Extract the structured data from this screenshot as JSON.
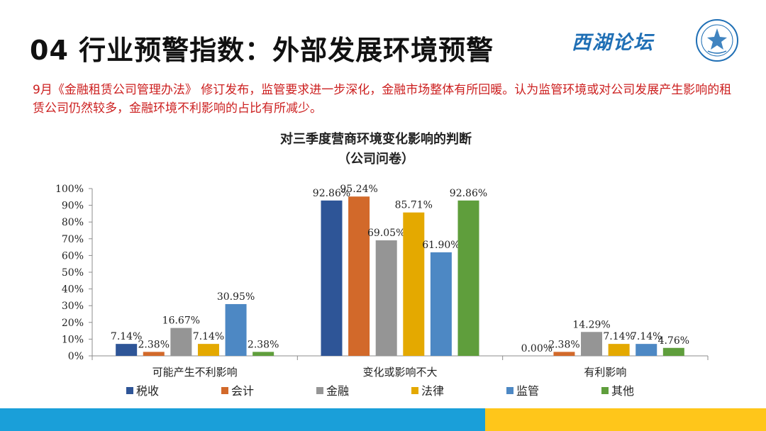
{
  "slide": {
    "title": "04 行业预警指数：外部发展环境预警",
    "brand": "西湖论坛",
    "intro": "9月《金融租赁公司管理办法》 修订发布，监管要求进一步深化，金融市场整体有所回暖。认为监管环境或对公司发展产生影响的租赁公司仍然较多，金融环境不利影响的占比有所减少。"
  },
  "colors": {
    "title": "#111111",
    "intro": "#cc1f1f",
    "brand": "#1f6fb5",
    "footer_blue": "#1a9fd9",
    "footer_yellow": "#ffc61a"
  },
  "chart_data": {
    "type": "bar",
    "title": "对三季度营商环境变化影响的判断",
    "subtitle": "（公司问卷）",
    "categories": [
      "可能产生不利影响",
      "变化或影响不大",
      "有利影响"
    ],
    "series": [
      {
        "name": "税收",
        "color": "#2e5597",
        "values": [
          7.14,
          92.86,
          0.0
        ]
      },
      {
        "name": "会计",
        "color": "#d2692a",
        "values": [
          2.38,
          95.24,
          2.38
        ]
      },
      {
        "name": "金融",
        "color": "#959595",
        "values": [
          16.67,
          69.05,
          14.29
        ]
      },
      {
        "name": "法律",
        "color": "#e4a900",
        "values": [
          7.14,
          85.71,
          7.14
        ]
      },
      {
        "name": "监管",
        "color": "#4d88c4",
        "values": [
          30.95,
          61.9,
          7.14
        ]
      },
      {
        "name": "其他",
        "color": "#5f9e3c",
        "values": [
          2.38,
          92.86,
          4.76
        ]
      }
    ],
    "ylim": [
      0,
      100
    ],
    "yticks": [
      "0%",
      "10%",
      "20%",
      "30%",
      "40%",
      "50%",
      "60%",
      "70%",
      "80%",
      "90%",
      "100%"
    ],
    "value_suffix": "%",
    "grid": false,
    "legend_position": "bottom"
  }
}
